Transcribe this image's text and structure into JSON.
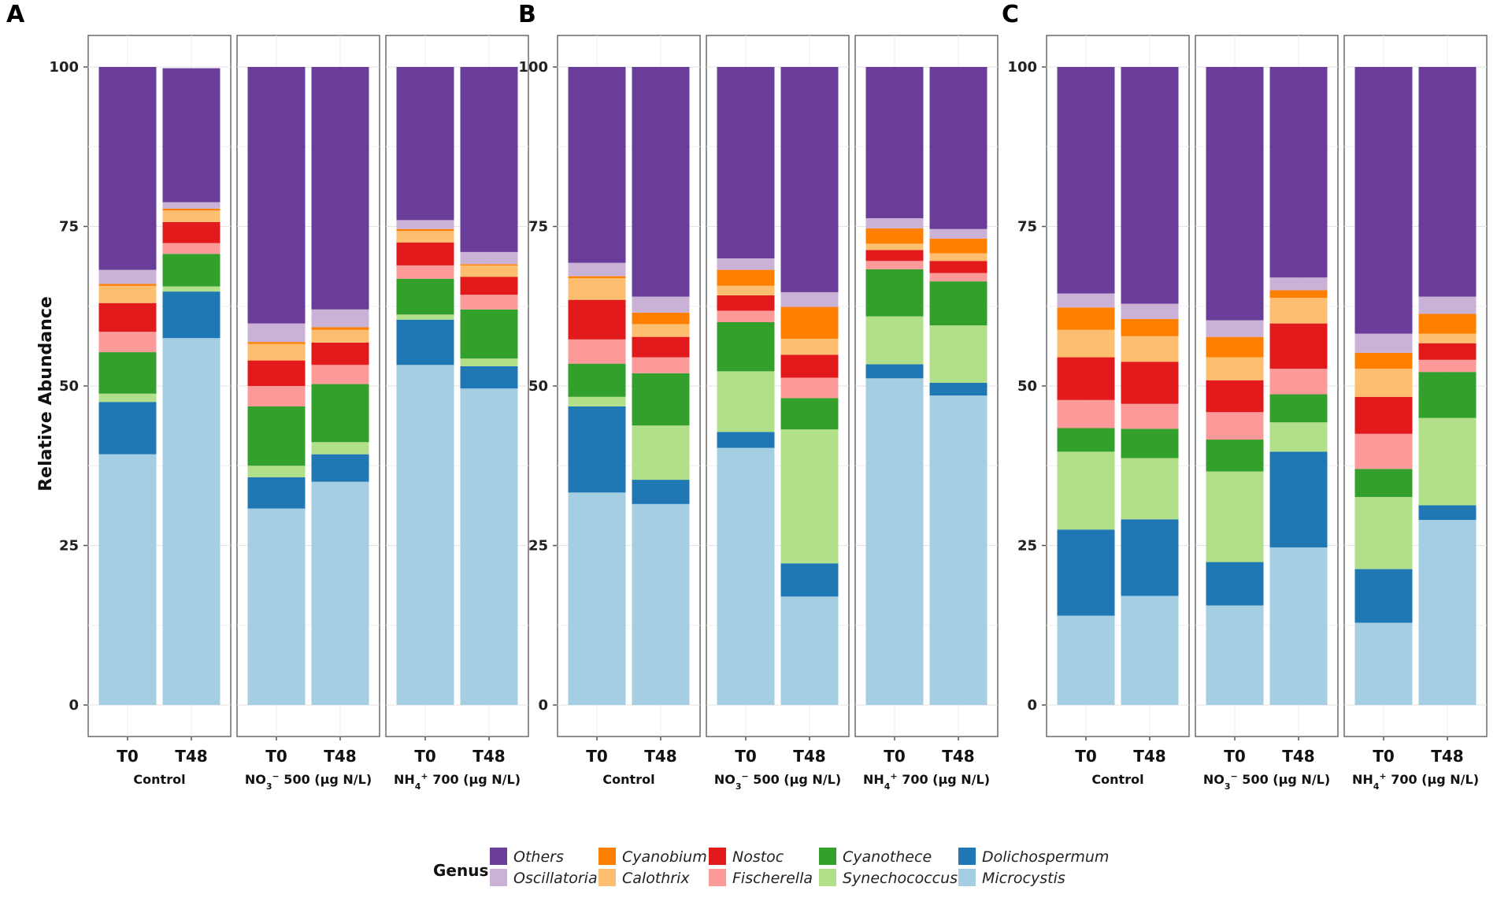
{
  "chart_data": {
    "type": "bar",
    "stacked": true,
    "ylabel": "Relative Abundance",
    "ylim": [
      0,
      100
    ],
    "yticks": [
      "0",
      "25",
      "50",
      "75",
      "100"
    ],
    "legend_title": "Genus",
    "legend_position": "bottom",
    "series_order": [
      "Microcystis",
      "Dolichospermum",
      "Synechococcus",
      "Cyanothece",
      "Fischerella",
      "Nostoc",
      "Calothrix",
      "Cyanobium",
      "Oscillatoria",
      "Others"
    ],
    "legend": [
      {
        "name": "Others",
        "color": "#6a3d9a"
      },
      {
        "name": "Oscillatoria",
        "color": "#cab2d6"
      },
      {
        "name": "Cyanobium",
        "color": "#ff7f00"
      },
      {
        "name": "Calothrix",
        "color": "#fdbf6f"
      },
      {
        "name": "Nostoc",
        "color": "#e31a1c"
      },
      {
        "name": "Fischerella",
        "color": "#fb9a99"
      },
      {
        "name": "Cyanothece",
        "color": "#33a02c"
      },
      {
        "name": "Synechococcus",
        "color": "#b2df8a"
      },
      {
        "name": "Dolichospermum",
        "color": "#1f78b4"
      },
      {
        "name": "Microcystis",
        "color": "#a6cee3"
      }
    ],
    "panels": [
      {
        "label": "A",
        "facets": [
          {
            "label": "Control",
            "bars": [
              {
                "x": "T0",
                "values": [
                  39.3,
                  8.2,
                  1.3,
                  6.5,
                  3.2,
                  4.5,
                  2.7,
                  0.3,
                  2.2,
                  31.8
                ]
              },
              {
                "x": "T48",
                "values": [
                  57.5,
                  7.3,
                  0.8,
                  5.1,
                  1.7,
                  3.3,
                  1.8,
                  0.3,
                  1.0,
                  21.0
                ]
              }
            ]
          },
          {
            "label": "NO3 500 (µg N/L)",
            "label_html": "NO<tspan baseline-shift='sub' font-size='11'>3</tspan><tspan baseline-shift='super' font-size='11'>−</tspan> 500 (µg N/L)",
            "bars": [
              {
                "x": "T0",
                "values": [
                  30.8,
                  4.9,
                  1.8,
                  9.3,
                  3.2,
                  4.0,
                  2.6,
                  0.3,
                  2.9,
                  40.2
                ]
              },
              {
                "x": "T48",
                "values": [
                  35.0,
                  4.3,
                  1.9,
                  9.1,
                  3.0,
                  3.5,
                  2.0,
                  0.4,
                  2.8,
                  38.0
                ]
              }
            ]
          },
          {
            "label": "NH4 700 (µg N/L)",
            "label_html": "NH<tspan baseline-shift='sub' font-size='11'>4</tspan><tspan baseline-shift='super' font-size='11'>+</tspan> 700 (µg N/L)",
            "bars": [
              {
                "x": "T0",
                "values": [
                  53.3,
                  7.1,
                  0.8,
                  5.6,
                  2.1,
                  3.6,
                  1.8,
                  0.3,
                  1.4,
                  24.0
                ]
              },
              {
                "x": "T48",
                "values": [
                  49.6,
                  3.5,
                  1.2,
                  7.7,
                  2.3,
                  2.8,
                  1.8,
                  0.2,
                  1.9,
                  29.0
                ]
              }
            ]
          }
        ]
      },
      {
        "label": "B",
        "facets": [
          {
            "label": "Control",
            "bars": [
              {
                "x": "T0",
                "values": [
                  33.3,
                  13.5,
                  1.5,
                  5.2,
                  3.8,
                  6.2,
                  3.4,
                  0.3,
                  2.1,
                  30.7
                ]
              },
              {
                "x": "T48",
                "values": [
                  31.5,
                  3.8,
                  8.5,
                  8.2,
                  2.5,
                  3.2,
                  2.0,
                  1.8,
                  2.5,
                  36.0
                ]
              }
            ]
          },
          {
            "label": "NO3 500 (µg N/L)",
            "label_html": "NO<tspan baseline-shift='sub' font-size='11'>3</tspan><tspan baseline-shift='super' font-size='11'>−</tspan> 500 (µg N/L)",
            "bars": [
              {
                "x": "T0",
                "values": [
                  40.3,
                  2.5,
                  9.5,
                  7.7,
                  1.8,
                  2.4,
                  1.5,
                  2.5,
                  1.8,
                  30.0
                ]
              },
              {
                "x": "T48",
                "values": [
                  17.0,
                  5.2,
                  21.0,
                  4.9,
                  3.2,
                  3.6,
                  2.5,
                  5.0,
                  2.3,
                  35.3
                ]
              }
            ]
          },
          {
            "label": "NH4 700 (µg N/L)",
            "label_html": "NH<tspan baseline-shift='sub' font-size='11'>4</tspan><tspan baseline-shift='super' font-size='11'>+</tspan> 700 (µg N/L)",
            "bars": [
              {
                "x": "T0",
                "values": [
                  51.2,
                  2.2,
                  7.5,
                  7.4,
                  1.3,
                  1.7,
                  1.0,
                  2.4,
                  1.6,
                  23.7
                ]
              },
              {
                "x": "T48",
                "values": [
                  48.5,
                  2.0,
                  9.0,
                  6.9,
                  1.3,
                  1.9,
                  1.2,
                  2.3,
                  1.5,
                  25.4
                ]
              }
            ]
          }
        ]
      },
      {
        "label": "C",
        "facets": [
          {
            "label": "Control",
            "bars": [
              {
                "x": "T0",
                "values": [
                  14.0,
                  13.5,
                  12.2,
                  3.7,
                  4.4,
                  6.7,
                  4.3,
                  3.5,
                  2.2,
                  35.5
                ]
              },
              {
                "x": "T48",
                "values": [
                  17.1,
                  12.0,
                  9.6,
                  4.6,
                  3.9,
                  6.6,
                  4.0,
                  2.7,
                  2.4,
                  37.1
                ]
              }
            ]
          },
          {
            "label": "NO3 500 (µg N/L)",
            "label_html": "NO<tspan baseline-shift='sub' font-size='11'>3</tspan><tspan baseline-shift='super' font-size='11'>−</tspan> 500 (µg N/L)",
            "bars": [
              {
                "x": "T0",
                "values": [
                  15.6,
                  6.8,
                  14.2,
                  5.0,
                  4.3,
                  5.0,
                  3.6,
                  3.2,
                  2.6,
                  39.7
                ]
              },
              {
                "x": "T48",
                "values": [
                  24.7,
                  15.0,
                  4.6,
                  4.4,
                  4.0,
                  7.1,
                  4.0,
                  1.2,
                  2.0,
                  33.0
                ]
              }
            ]
          },
          {
            "label": "NH4 700 (µg N/L)",
            "label_html": "NH<tspan baseline-shift='sub' font-size='11'>4</tspan><tspan baseline-shift='super' font-size='11'>+</tspan> 700 (µg N/L)",
            "bars": [
              {
                "x": "T0",
                "values": [
                  12.9,
                  8.4,
                  11.3,
                  4.4,
                  5.5,
                  5.8,
                  4.4,
                  2.5,
                  3.0,
                  41.8
                ]
              },
              {
                "x": "T48",
                "values": [
                  29.0,
                  2.3,
                  13.7,
                  7.2,
                  1.9,
                  2.6,
                  1.5,
                  3.1,
                  2.7,
                  36.0
                ]
              }
            ]
          }
        ]
      }
    ]
  }
}
